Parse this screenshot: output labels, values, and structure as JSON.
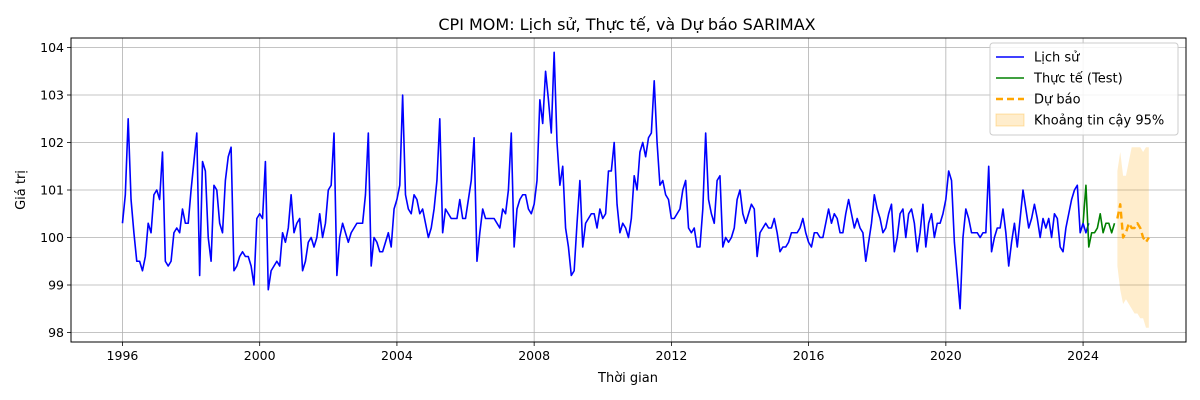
{
  "chart_data": {
    "type": "line",
    "title": "CPI MOM: Lịch sử, Thực tế, và Dự báo SARIMAX",
    "xlabel": "Thời gian",
    "ylabel": "Giá trị",
    "xlim": [
      1994.5,
      2027.0
    ],
    "ylim": [
      97.8,
      104.2
    ],
    "x_ticks": [
      1996,
      2000,
      2004,
      2008,
      2012,
      2016,
      2020,
      2024
    ],
    "y_ticks": [
      98,
      99,
      100,
      101,
      102,
      103,
      104
    ],
    "grid": true,
    "legend_position": "top-right",
    "series": [
      {
        "name": "Lịch sử",
        "color": "#0000ff",
        "style": "solid",
        "x_start": 1996.0,
        "step": 0.08333,
        "values": [
          100.3,
          100.9,
          102.5,
          100.8,
          100.1,
          99.5,
          99.5,
          99.3,
          99.6,
          100.3,
          100.1,
          100.9,
          101.0,
          100.8,
          101.8,
          99.5,
          99.4,
          99.5,
          100.1,
          100.2,
          100.1,
          100.6,
          100.3,
          100.3,
          101.0,
          101.6,
          102.2,
          99.2,
          101.6,
          101.4,
          100.0,
          99.5,
          101.1,
          101.0,
          100.3,
          100.1,
          101.2,
          101.7,
          101.9,
          99.3,
          99.4,
          99.6,
          99.7,
          99.6,
          99.6,
          99.4,
          99.0,
          100.4,
          100.5,
          100.4,
          101.6,
          98.9,
          99.3,
          99.4,
          99.5,
          99.4,
          100.1,
          99.9,
          100.2,
          100.9,
          100.1,
          100.3,
          100.4,
          99.3,
          99.5,
          99.9,
          100.0,
          99.8,
          100.0,
          100.5,
          100.0,
          100.3,
          101.0,
          101.1,
          102.2,
          99.2,
          100.0,
          100.3,
          100.1,
          99.9,
          100.1,
          100.2,
          100.3,
          100.3,
          100.3,
          100.9,
          102.2,
          99.4,
          100.0,
          99.9,
          99.7,
          99.7,
          99.9,
          100.1,
          99.8,
          100.6,
          100.8,
          101.1,
          103.0,
          100.9,
          100.6,
          100.5,
          100.9,
          100.8,
          100.5,
          100.6,
          100.3,
          100.0,
          100.2,
          100.6,
          101.2,
          102.5,
          100.1,
          100.6,
          100.5,
          100.4,
          100.4,
          100.4,
          100.8,
          100.4,
          100.4,
          100.8,
          101.2,
          102.1,
          99.5,
          100.1,
          100.6,
          100.4,
          100.4,
          100.4,
          100.4,
          100.3,
          100.2,
          100.6,
          100.5,
          101.0,
          102.2,
          99.8,
          100.6,
          100.8,
          100.9,
          100.9,
          100.6,
          100.5,
          100.7,
          101.2,
          102.9,
          102.4,
          103.5,
          102.9,
          102.2,
          103.9,
          102.0,
          101.1,
          101.5,
          100.2,
          99.8,
          99.2,
          99.3,
          100.3,
          101.2,
          99.8,
          100.3,
          100.4,
          100.5,
          100.5,
          100.2,
          100.6,
          100.4,
          100.5,
          101.4,
          101.4,
          102.0,
          100.7,
          100.1,
          100.3,
          100.2,
          100.0,
          100.4,
          101.3,
          101.0,
          101.8,
          102.0,
          101.7,
          102.1,
          102.2,
          103.3,
          102.0,
          101.1,
          101.2,
          100.9,
          100.8,
          100.4,
          100.4,
          100.5,
          100.6,
          101.0,
          101.2,
          100.2,
          100.1,
          100.2,
          99.8,
          99.8,
          100.6,
          102.2,
          100.8,
          100.5,
          100.3,
          101.2,
          101.3,
          99.8,
          100.0,
          99.9,
          100.0,
          100.2,
          100.8,
          101.0,
          100.5,
          100.3,
          100.5,
          100.7,
          100.6,
          99.6,
          100.1,
          100.2,
          100.3,
          100.2,
          100.2,
          100.4,
          100.1,
          99.7,
          99.8,
          99.8,
          99.9,
          100.1,
          100.1,
          100.1,
          100.2,
          100.4,
          100.1,
          99.9,
          99.8,
          100.1,
          100.1,
          100.0,
          100.0,
          100.3,
          100.6,
          100.3,
          100.5,
          100.4,
          100.1,
          100.1,
          100.5,
          100.8,
          100.5,
          100.2,
          100.4,
          100.2,
          100.1,
          99.5,
          99.9,
          100.3,
          100.9,
          100.6,
          100.4,
          100.1,
          100.2,
          100.5,
          100.7,
          99.7,
          100.0,
          100.5,
          100.6,
          100.0,
          100.5,
          100.6,
          100.3,
          99.7,
          100.1,
          100.7,
          99.8,
          100.3,
          100.5,
          100.0,
          100.3,
          100.3,
          100.5,
          100.8,
          101.4,
          101.2,
          99.9,
          99.2,
          98.5,
          100.0,
          100.6,
          100.4,
          100.1,
          100.1,
          100.1,
          100.0,
          100.1,
          100.1,
          101.5,
          99.7,
          100.0,
          100.2,
          100.2,
          100.6,
          100.1,
          99.4,
          99.9,
          100.3,
          99.8,
          100.4,
          101.0,
          100.6,
          100.2,
          100.4,
          100.7,
          100.4,
          100.0,
          100.4,
          100.2,
          100.4,
          100.0,
          100.5,
          100.4,
          99.8,
          99.7,
          100.2,
          100.5,
          100.8,
          101.0,
          101.1,
          100.1,
          100.3,
          100.1,
          100.3
        ]
      },
      {
        "name": "Thực tế (Test)",
        "color": "#008000",
        "style": "solid",
        "x_start": 2024.0,
        "step": 0.08333,
        "values": [
          100.3,
          101.1,
          99.8,
          100.1,
          100.1,
          100.2,
          100.5,
          100.1,
          100.3,
          100.3,
          100.1,
          100.3
        ]
      },
      {
        "name": "Dự báo",
        "color": "#ffa500",
        "style": "dashed",
        "x_start": 2025.0,
        "step": 0.08333,
        "values": [
          100.4,
          100.7,
          100.0,
          100.1,
          100.3,
          100.2,
          100.2,
          100.3,
          100.2,
          100.0,
          99.9,
          100.0
        ],
        "ci_lower": [
          99.4,
          98.9,
          98.6,
          98.7,
          98.6,
          98.5,
          98.4,
          98.4,
          98.3,
          98.3,
          98.1,
          98.1
        ],
        "ci_upper": [
          101.4,
          101.8,
          101.3,
          101.3,
          101.6,
          101.9,
          101.9,
          101.9,
          101.9,
          101.8,
          101.9,
          101.9
        ]
      }
    ],
    "ci_band": {
      "name": "Khoảng tin cậy 95%",
      "color": "#ffa500",
      "opacity": 0.2
    }
  }
}
